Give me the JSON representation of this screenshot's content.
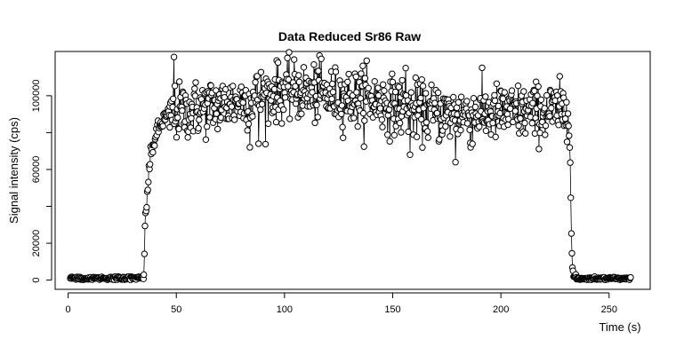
{
  "chart_data": {
    "type": "scatter",
    "title": "Data Reduced Sr86 Raw",
    "xlabel": "Time (s)",
    "ylabel": "Signal intensity (cps)",
    "xlim": [
      -6,
      269
    ],
    "ylim": [
      -5000,
      124000
    ],
    "xticks": [
      0,
      50,
      100,
      150,
      200,
      250
    ],
    "yticks": [
      0,
      20000,
      60000,
      100000
    ],
    "yticks_shown": [
      0,
      20000,
      60000,
      100000
    ],
    "yticks_minor": [
      40000,
      80000
    ],
    "marker": "open-circle",
    "connect_points": true,
    "grid": false,
    "series": [
      {
        "segments": [
          {
            "x_start": 1,
            "x_end": 35,
            "step": 0.26,
            "baseline": 1100,
            "noise": 500
          },
          {
            "x_start": 35,
            "x_end": 47,
            "step": 0.26,
            "ramp": [
              [
                35,
                6000
              ],
              [
                35.5,
                27000
              ],
              [
                36.5,
                45000
              ],
              [
                37.5,
                62000
              ],
              [
                39,
                72000
              ],
              [
                41,
                80000
              ],
              [
                44,
                87000
              ],
              [
                47,
                90000
              ]
            ],
            "noise": 5000
          },
          {
            "x_start": 47,
            "x_end": 231,
            "step": 0.26,
            "plateau": [
              [
                47,
                90000
              ],
              [
                60,
                93000
              ],
              [
                80,
                97000
              ],
              [
                100,
                103000
              ],
              [
                120,
                100000
              ],
              [
                140,
                98000
              ],
              [
                160,
                92000
              ],
              [
                175,
                90000
              ],
              [
                190,
                90000
              ],
              [
                210,
                91000
              ],
              [
                231,
                92000
              ]
            ],
            "noise": 9000
          },
          {
            "x_start": 231,
            "x_end": 235,
            "step": 0.26,
            "ramp": [
              [
                231,
                92000
              ],
              [
                232,
                67000
              ],
              [
                232.6,
                22000
              ],
              [
                233.1,
                6000
              ],
              [
                233.6,
                2000
              ],
              [
                235,
                1000
              ]
            ],
            "noise": 1500
          },
          {
            "x_start": 235,
            "x_end": 260,
            "step": 0.26,
            "baseline": 900,
            "noise": 400
          }
        ],
        "highlights": [
          {
            "x": 48.9,
            "y": 121000
          },
          {
            "x": 117,
            "y": 120000
          },
          {
            "x": 97,
            "y": 118000
          },
          {
            "x": 138,
            "y": 119000
          },
          {
            "x": 156,
            "y": 115000
          },
          {
            "x": 84,
            "y": 72000
          },
          {
            "x": 88,
            "y": 74000
          },
          {
            "x": 158,
            "y": 68000
          },
          {
            "x": 179,
            "y": 64000
          },
          {
            "x": 186,
            "y": 72000
          }
        ]
      }
    ]
  }
}
